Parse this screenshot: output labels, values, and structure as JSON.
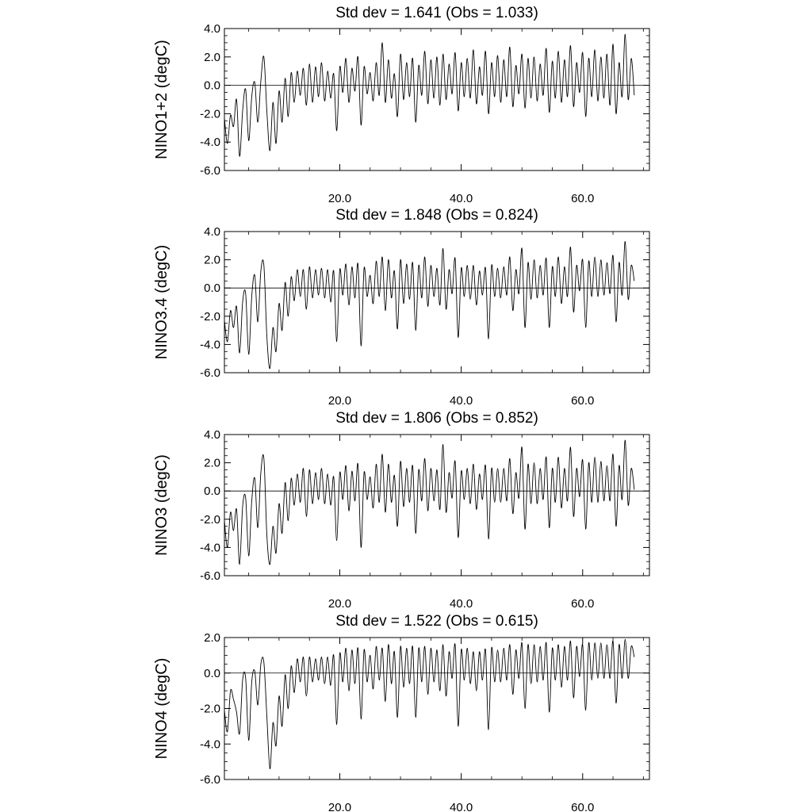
{
  "chart_data": [
    {
      "type": "line",
      "title": "Std dev = 1.641 (Obs = 1.033)",
      "ylabel": "NINO1+2 (degC)",
      "xlim": [
        1,
        71
      ],
      "ylim": [
        -6.0,
        4.0
      ],
      "xticks": [
        {
          "value": 20,
          "label": "20.0"
        },
        {
          "value": 40,
          "label": "40.0"
        },
        {
          "value": 60,
          "label": "60.0"
        }
      ],
      "yticks": [
        {
          "value": 4,
          "label": "4.0"
        },
        {
          "value": 2,
          "label": "2.0"
        },
        {
          "value": 0,
          "label": "0.0"
        },
        {
          "value": -2,
          "label": "-2.0"
        },
        {
          "value": -4,
          "label": "-4.0"
        },
        {
          "value": -6,
          "label": "-6.0"
        }
      ],
      "reference_line": 0,
      "series": [
        {
          "x_start": 1,
          "x_step": 0.5,
          "values": [
            -2.3,
            -4.1,
            -2.1,
            -2.9,
            -1.0,
            -5.0,
            -1.8,
            -0.3,
            -3.9,
            -0.8,
            0.2,
            -2.6,
            0.3,
            2.0,
            -1.9,
            -4.6,
            -1.2,
            -4.1,
            -0.4,
            -2.6,
            0.5,
            -2.2,
            0.9,
            -1.2,
            1.0,
            -0.7,
            1.2,
            -1.4,
            1.5,
            -1.2,
            1.3,
            -0.8,
            1.6,
            -1.1,
            1.0,
            -0.9,
            0.8,
            -3.2,
            1.3,
            -0.5,
            1.9,
            -1.2,
            1.2,
            -0.4,
            2.0,
            -2.8,
            1.3,
            -0.6,
            0.9,
            -1.1,
            1.6,
            -0.7,
            3.0,
            -1.2,
            1.8,
            -0.9,
            0.8,
            -2.2,
            2.2,
            -1.0,
            1.6,
            -0.8,
            1.9,
            -2.6,
            1.4,
            -0.7,
            2.4,
            -1.3,
            1.8,
            -0.9,
            2.0,
            -1.4,
            2.2,
            -1.0,
            1.5,
            -0.6,
            2.3,
            -1.8,
            1.6,
            -0.8,
            1.9,
            -0.9,
            2.5,
            -1.3,
            1.3,
            -0.7,
            2.4,
            -2.0,
            1.6,
            -0.8,
            2.1,
            -1.2,
            1.8,
            -0.8,
            2.7,
            -1.5,
            1.4,
            -0.6,
            2.2,
            -1.6,
            1.9,
            -0.9,
            2.0,
            -1.1,
            1.5,
            -0.7,
            2.6,
            -1.9,
            1.7,
            -0.9,
            2.4,
            -1.2,
            1.8,
            -0.8,
            2.8,
            -1.5,
            1.6,
            -0.5,
            2.3,
            -2.2,
            1.9,
            -0.8,
            2.5,
            -1.1,
            2.0,
            -0.9,
            2.2,
            -1.4,
            2.9,
            -2.0,
            1.6,
            -0.8,
            3.6,
            -1.0,
            1.9,
            -0.7
          ]
        }
      ]
    },
    {
      "type": "line",
      "title": "Std dev = 1.848 (Obs = 0.824)",
      "ylabel": "NINO3.4 (degC)",
      "xlim": [
        1,
        71
      ],
      "ylim": [
        -6.0,
        4.0
      ],
      "xticks": [
        {
          "value": 20,
          "label": "20.0"
        },
        {
          "value": 40,
          "label": "40.0"
        },
        {
          "value": 60,
          "label": "60.0"
        }
      ],
      "yticks": [
        {
          "value": 4,
          "label": "4.0"
        },
        {
          "value": 2,
          "label": "2.0"
        },
        {
          "value": 0,
          "label": "0.0"
        },
        {
          "value": -2,
          "label": "-2.0"
        },
        {
          "value": -4,
          "label": "-4.0"
        },
        {
          "value": -6,
          "label": "-6.0"
        }
      ],
      "reference_line": 0,
      "series": [
        {
          "x_start": 1,
          "x_step": 0.5,
          "values": [
            -2.3,
            -3.8,
            -1.6,
            -2.8,
            -1.3,
            -4.6,
            -1.0,
            -0.4,
            -4.7,
            -0.6,
            0.9,
            -2.4,
            1.2,
            1.6,
            -3.5,
            -5.7,
            -2.8,
            -4.5,
            -1.1,
            -3.0,
            0.4,
            -2.0,
            0.8,
            -0.9,
            1.3,
            -0.6,
            1.3,
            -1.5,
            1.5,
            -0.7,
            1.3,
            -0.5,
            1.4,
            -0.7,
            1.3,
            -1.0,
            1.2,
            -3.8,
            1.3,
            -0.5,
            1.7,
            -1.2,
            1.5,
            -0.7,
            1.7,
            -4.1,
            1.4,
            -0.6,
            0.9,
            -1.1,
            1.9,
            -0.6,
            2.2,
            -1.6,
            2.0,
            -0.7,
            1.2,
            -2.9,
            2.0,
            -1.1,
            1.7,
            -0.8,
            1.8,
            -3.0,
            1.6,
            -0.7,
            2.2,
            -1.3,
            1.6,
            -0.6,
            1.4,
            -1.2,
            2.8,
            -1.5,
            1.3,
            -0.4,
            2.1,
            -3.5,
            1.4,
            -0.6,
            1.6,
            -0.8,
            1.6,
            -1.2,
            1.2,
            -0.5,
            1.4,
            -3.6,
            1.6,
            -0.6,
            1.4,
            -0.7,
            1.5,
            -0.5,
            2.2,
            -1.6,
            1.3,
            -0.4,
            2.8,
            -2.8,
            1.8,
            -0.8,
            2.0,
            -0.7,
            1.6,
            -0.5,
            2.1,
            -2.8,
            1.5,
            -0.6,
            2.2,
            -1.1,
            1.5,
            -0.6,
            2.9,
            -1.7,
            1.6,
            -0.2,
            2.0,
            -2.8,
            1.9,
            -0.6,
            2.2,
            -0.6,
            2.0,
            -0.5,
            1.8,
            -0.4,
            2.3,
            -2.4,
            1.8,
            -0.5,
            3.3,
            -0.8,
            1.6,
            0.5
          ]
        }
      ]
    },
    {
      "type": "line",
      "title": "Std dev = 1.806 (Obs = 0.852)",
      "ylabel": "NINO3 (degC)",
      "xlim": [
        1,
        71
      ],
      "ylim": [
        -6.0,
        4.0
      ],
      "xticks": [
        {
          "value": 20,
          "label": "20.0"
        },
        {
          "value": 40,
          "label": "40.0"
        },
        {
          "value": 60,
          "label": "60.0"
        }
      ],
      "yticks": [
        {
          "value": 4,
          "label": "4.0"
        },
        {
          "value": 2,
          "label": "2.0"
        },
        {
          "value": 0,
          "label": "0.0"
        },
        {
          "value": -2,
          "label": "-2.0"
        },
        {
          "value": -4,
          "label": "-4.0"
        },
        {
          "value": -6,
          "label": "-6.0"
        }
      ],
      "reference_line": 0,
      "series": [
        {
          "x_start": 1,
          "x_step": 0.5,
          "values": [
            -2.1,
            -4.0,
            -1.5,
            -2.8,
            -1.3,
            -5.2,
            -1.1,
            -0.5,
            -4.6,
            -0.7,
            0.9,
            -2.6,
            1.3,
            2.3,
            -3.2,
            -5.2,
            -2.5,
            -4.4,
            -0.9,
            -3.0,
            0.6,
            -2.1,
            0.9,
            -1.0,
            1.2,
            -0.8,
            1.6,
            -1.8,
            1.5,
            -0.9,
            1.3,
            -0.6,
            1.6,
            -0.9,
            1.2,
            -1.0,
            1.0,
            -3.5,
            1.3,
            -0.6,
            1.8,
            -1.4,
            1.4,
            -0.7,
            1.9,
            -4.0,
            1.3,
            -0.6,
            1.0,
            -1.2,
            1.9,
            -0.8,
            2.6,
            -1.5,
            1.9,
            -0.8,
            1.1,
            -2.5,
            2.1,
            -1.1,
            1.6,
            -0.8,
            1.8,
            -3.0,
            1.5,
            -0.7,
            2.3,
            -1.4,
            1.6,
            -0.7,
            1.5,
            -1.3,
            3.3,
            -1.5,
            1.3,
            -0.5,
            2.1,
            -3.3,
            1.4,
            -0.6,
            1.6,
            -0.9,
            1.9,
            -1.3,
            1.2,
            -0.6,
            1.8,
            -3.4,
            1.6,
            -0.8,
            1.6,
            -0.8,
            1.6,
            -0.7,
            2.3,
            -1.6,
            1.3,
            -0.5,
            3.1,
            -2.7,
            1.9,
            -0.9,
            2.0,
            -0.9,
            1.6,
            -0.6,
            2.4,
            -2.6,
            1.6,
            -0.8,
            2.4,
            -1.2,
            1.6,
            -0.7,
            3.1,
            -1.8,
            1.6,
            -0.4,
            2.2,
            -2.7,
            2.0,
            -0.8,
            2.4,
            -0.8,
            2.1,
            -0.7,
            1.8,
            -0.7,
            2.6,
            -2.5,
            1.8,
            -0.6,
            3.6,
            -1.0,
            1.6,
            0.1
          ]
        }
      ]
    },
    {
      "type": "line",
      "title": "Std dev = 1.522 (Obs = 0.615)",
      "ylabel": "NINO4 (degC)",
      "xlim": [
        1,
        71
      ],
      "ylim": [
        -6.0,
        2.0
      ],
      "xticks": [
        {
          "value": 20,
          "label": "20.0"
        },
        {
          "value": 40,
          "label": "40.0"
        },
        {
          "value": 60,
          "label": "60.0"
        }
      ],
      "yticks": [
        {
          "value": 2,
          "label": "2.0"
        },
        {
          "value": 0,
          "label": "0.0"
        },
        {
          "value": -2,
          "label": "-2.0"
        },
        {
          "value": -4,
          "label": "-4.0"
        },
        {
          "value": -6,
          "label": "-6.0"
        }
      ],
      "reference_line": 0,
      "series": [
        {
          "x_start": 1,
          "x_step": 0.5,
          "values": [
            -2.1,
            -3.3,
            -1.0,
            -1.5,
            -2.2,
            -3.4,
            -0.4,
            -0.3,
            -3.8,
            -0.5,
            0.1,
            -1.8,
            0.5,
            0.6,
            -2.5,
            -5.4,
            -2.8,
            -4.1,
            -1.3,
            -3.0,
            -0.1,
            -2.0,
            0.4,
            -1.1,
            0.8,
            -0.5,
            0.9,
            -1.3,
            0.9,
            -0.5,
            0.8,
            -0.4,
            0.9,
            -0.6,
            0.9,
            -0.7,
            1.0,
            -2.9,
            1.1,
            -0.5,
            1.4,
            -1.0,
            1.3,
            -0.6,
            1.4,
            -2.6,
            1.3,
            -0.5,
            1.0,
            -0.9,
            1.5,
            -0.4,
            1.4,
            -1.6,
            1.6,
            -0.6,
            1.2,
            -2.5,
            1.5,
            -0.8,
            1.4,
            -0.6,
            1.5,
            -2.5,
            1.4,
            -0.5,
            1.5,
            -1.2,
            1.4,
            -0.5,
            1.3,
            -1.0,
            1.6,
            -1.3,
            1.2,
            -0.3,
            1.6,
            -3.0,
            1.3,
            -0.4,
            1.4,
            -0.6,
            1.2,
            -1.0,
            1.2,
            -0.4,
            1.3,
            -3.2,
            1.4,
            -0.5,
            1.3,
            -0.5,
            1.4,
            -0.4,
            1.6,
            -1.2,
            1.3,
            -0.3,
            1.7,
            -2.0,
            1.6,
            -0.6,
            1.6,
            -0.5,
            1.5,
            -0.4,
            1.7,
            -2.2,
            1.4,
            -0.4,
            1.6,
            -0.8,
            1.5,
            -0.4,
            1.8,
            -1.4,
            1.5,
            -0.2,
            1.6,
            -2.1,
            1.7,
            -0.4,
            1.7,
            -0.3,
            1.7,
            -0.3,
            1.6,
            -0.3,
            1.8,
            -1.7,
            1.6,
            -0.3,
            1.9,
            -0.3,
            1.5,
            0.9
          ]
        }
      ]
    }
  ]
}
